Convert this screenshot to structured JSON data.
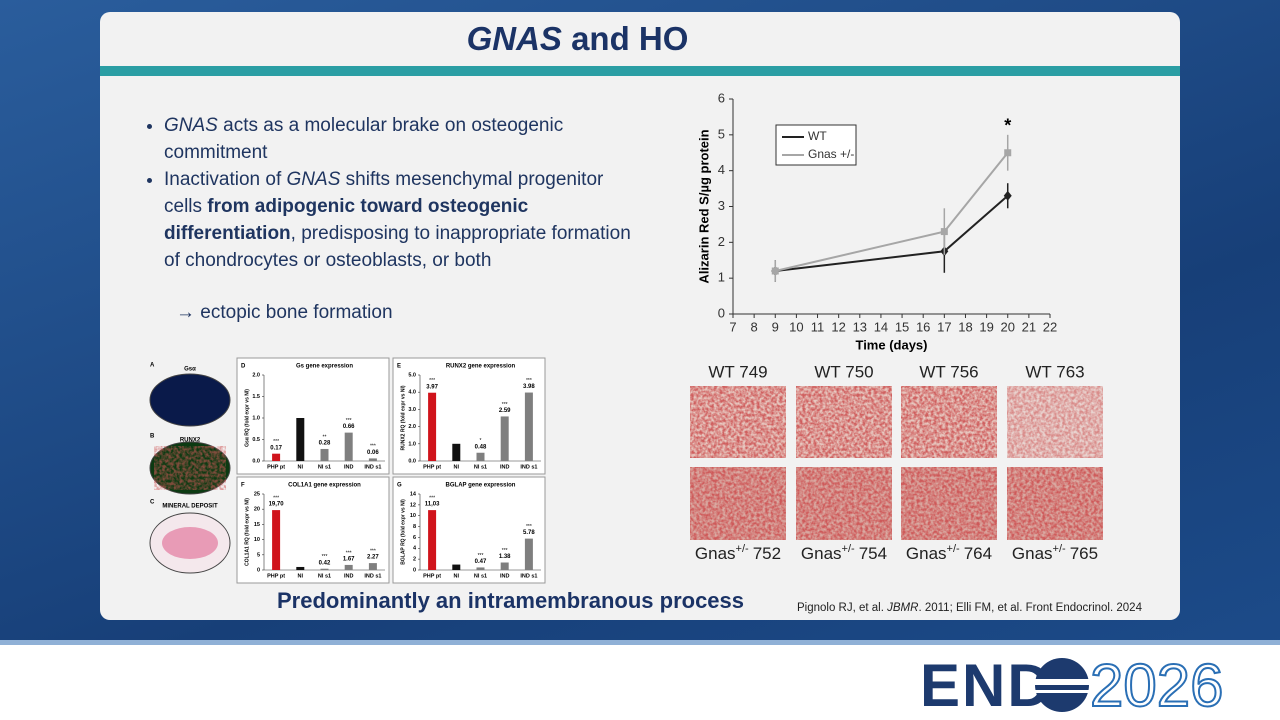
{
  "header": {
    "title_italic": "GNAS",
    "title_rest": "and HO"
  },
  "bullets": [
    [
      "GNAS",
      "acts as a molecular brake on osteogenic commitment"
    ],
    [
      "Inactivation of",
      "GNAS",
      "shifts mesenchymal progenitor cells",
      "from adipogenic toward osteogenic differentiation",
      ", predisposing to inappropriate formation of chondrocytes or osteoblasts, or both"
    ]
  ],
  "sub_bullet": "→ ectopic bone formation",
  "images": [
    {
      "panel": "A",
      "label": "Gsα"
    },
    {
      "panel": "B",
      "label": "RUNX2"
    },
    {
      "panel": "C",
      "label": "MINERAL DEPOSIT"
    }
  ],
  "photos": {
    "top": [
      "WT 749",
      "WT 750",
      "WT 756",
      "WT 763"
    ],
    "bottom": [
      {
        "name": "Gnas",
        "sup": "+/-",
        "id": "752"
      },
      {
        "name": "Gnas",
        "sup": "+/-",
        "id": "754"
      },
      {
        "name": "Gnas",
        "sup": "+/-",
        "id": "764"
      },
      {
        "name": "Gnas",
        "sup": "+/-",
        "id": "765"
      }
    ]
  },
  "chart_data": [
    {
      "type": "line",
      "xlabel": "Time (days)",
      "ylabel": "Alizarin Red S/µg protein",
      "x": [
        9,
        17,
        20
      ],
      "xlim": [
        7,
        22
      ],
      "xticks": [
        7,
        8,
        9,
        10,
        11,
        12,
        13,
        14,
        15,
        16,
        17,
        18,
        19,
        20,
        21,
        22
      ],
      "ylim": [
        0,
        6
      ],
      "yticks": [
        0,
        1,
        2,
        3,
        4,
        5,
        6
      ],
      "legend": "upper left",
      "annotation": "*",
      "series": [
        {
          "name": "WT",
          "color": "#222222",
          "marker": "diamond",
          "values": [
            1.2,
            1.75,
            3.3
          ],
          "errors": [
            0.3,
            0.6,
            0.35
          ]
        },
        {
          "name": "Gnas +/-",
          "color": "#a6a6a6",
          "marker": "square",
          "values": [
            1.2,
            2.3,
            4.5
          ],
          "errors": [
            0.3,
            0.65,
            0.5
          ]
        }
      ]
    },
    {
      "type": "bar",
      "panel": "D",
      "title": "Gs gene expression",
      "ylabel": "Gsα RQ (fold expr vs NI)",
      "categories": [
        "PHP pt",
        "NI",
        "NI s1",
        "IND",
        "IND s1"
      ],
      "values": [
        0.17,
        1,
        0.28,
        0.66,
        0.06
      ],
      "value_labels": [
        "0.17",
        null,
        "0.28",
        "0.66",
        "0.06"
      ],
      "significance": [
        "***",
        null,
        "**",
        "***",
        "***"
      ],
      "colors": [
        "#d0131b",
        "#111111",
        "#7f7f7f",
        "#7f7f7f",
        "#7f7f7f"
      ],
      "ylim": [
        0,
        2
      ],
      "yticks": [
        {
          "value": 0,
          "label": "0.0"
        },
        {
          "value": 0.5,
          "label": "0.5"
        },
        {
          "value": 1,
          "label": "1.0"
        },
        {
          "value": 1.5,
          "label": "1.5"
        },
        {
          "value": 2,
          "label": "2.0"
        }
      ]
    },
    {
      "type": "bar",
      "panel": "E",
      "title": "RUNX2 gene expression",
      "ylabel": "RUNX2 RQ (fold expr vs NI)",
      "categories": [
        "PHP pt",
        "NI",
        "NI s1",
        "IND",
        "IND s1"
      ],
      "values": [
        3.97,
        1,
        0.48,
        2.59,
        3.98
      ],
      "value_labels": [
        "3.97",
        null,
        "0.48",
        "2.59",
        "3.98"
      ],
      "significance": [
        "***",
        null,
        "*",
        "***",
        "***"
      ],
      "colors": [
        "#d0131b",
        "#111111",
        "#7f7f7f",
        "#7f7f7f",
        "#7f7f7f"
      ],
      "ylim": [
        0,
        5
      ],
      "yticks": [
        {
          "value": 0,
          "label": "0.0"
        },
        {
          "value": 1,
          "label": "1.0"
        },
        {
          "value": 2,
          "label": "2.0"
        },
        {
          "value": 3,
          "label": "3.0"
        },
        {
          "value": 4,
          "label": "4.0"
        },
        {
          "value": 5,
          "label": "5.0"
        }
      ]
    },
    {
      "type": "bar",
      "panel": "F",
      "title": "COL1A1 gene expression",
      "ylabel": "COL1A1 RQ (fold expr vs NI)",
      "categories": [
        "PHP pt",
        "NI",
        "NI s1",
        "IND",
        "IND s1"
      ],
      "values": [
        19.7,
        1,
        0.42,
        1.67,
        2.27
      ],
      "value_labels": [
        "19,70",
        null,
        "0.42",
        "1.67",
        "2.27"
      ],
      "significance": [
        "***",
        null,
        "***",
        "***",
        "***"
      ],
      "colors": [
        "#d0131b",
        "#111111",
        "#7f7f7f",
        "#7f7f7f",
        "#7f7f7f"
      ],
      "ylim": [
        0,
        25
      ],
      "yticks": [
        0,
        5,
        10,
        15,
        20,
        25
      ]
    },
    {
      "type": "bar",
      "panel": "G",
      "title": "BGLAP gene expression",
      "ylabel": "BGLAP RQ (fold expr vs NI)",
      "categories": [
        "PHP pt",
        "NI",
        "NI s1",
        "IND",
        "IND s1"
      ],
      "values": [
        11.03,
        1,
        0.47,
        1.38,
        5.78
      ],
      "value_labels": [
        "11,03",
        null,
        "0.47",
        "1.38",
        "5.78"
      ],
      "significance": [
        "***",
        null,
        "***",
        "***",
        "***"
      ],
      "colors": [
        "#d0131b",
        "#111111",
        "#7f7f7f",
        "#7f7f7f",
        "#7f7f7f"
      ],
      "ylim": [
        0,
        14
      ],
      "yticks": [
        0,
        2,
        4,
        6,
        8,
        10,
        12,
        14
      ]
    }
  ],
  "footer": {
    "tagline": "Predominantly an intramembranous process",
    "citation": [
      "Pignolo RJ, et al.",
      "JBMR",
      ". 2011; Elli FM, et al. Front Endocrinol. 2024"
    ]
  },
  "logo": {
    "left": "END",
    "right": "2026"
  }
}
